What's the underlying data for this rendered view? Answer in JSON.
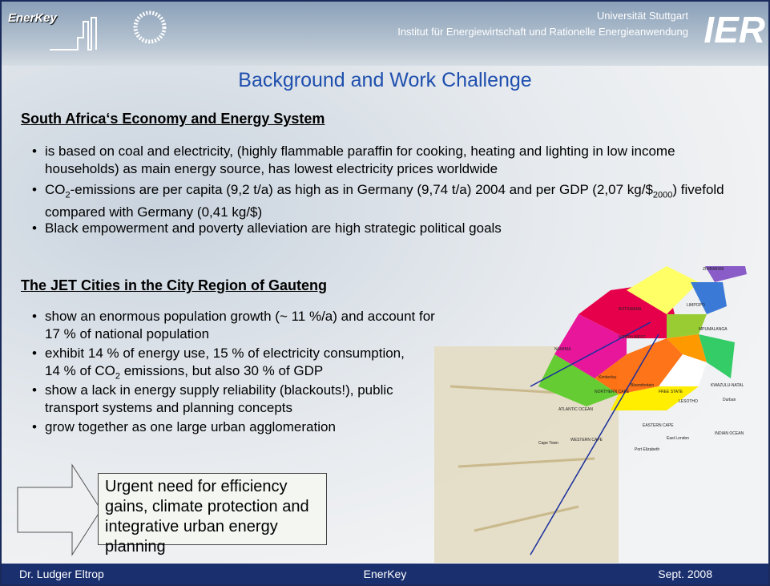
{
  "header": {
    "logo": "EnerKey",
    "university": "Universität Stuttgart",
    "institute": "Institut für Energiewirtschaft und Rationelle Energieanwendung",
    "logo_right": "IER"
  },
  "title": "Background and Work Challenge",
  "sections": [
    {
      "heading": "South Africa‘s Economy and Energy System",
      "bullets": [
        [
          "is based on coal and electricity, (highly flammable paraffin for cooking, heating and lighting in low income households) as main energy source, has lowest electricity prices worldwide"
        ],
        [
          "CO",
          "2",
          "-emissions are per capita (9,2 t/a) as high as in Germany (9,74 t/a) 2004 and per GDP (2,07 kg/$",
          "2000",
          ") fivefold compared with Germany (0,41 kg/$)"
        ],
        [
          "Black empowerment and poverty alleviation are high strategic political goals"
        ]
      ]
    },
    {
      "heading": "The JET Cities in the City Region of Gauteng",
      "bullets": [
        [
          "show an enormous population growth (~ 11 %/a) and account for 17 % of national population"
        ],
        [
          "exhibit 14 % of energy use, 15 % of electricity consumption, 14 % of CO",
          "2",
          " emissions, but also 30 % of GDP"
        ],
        [
          "show a lack in energy supply reliability (blackouts!), public transport systems and planning concepts"
        ],
        [
          "grow together as one large urban agglomeration"
        ]
      ]
    }
  ],
  "callout": "Urgent need for efficiency gains, climate protection and integrative urban energy planning",
  "map_labels": [
    "ZIMBABWE",
    "BOTSWANA",
    "LIMPOPO",
    "NAMIBIA",
    "NORTH WEST",
    "MPUMALANGA",
    "FREE STATE",
    "NORTHERN CAPE",
    "KWAZULU-NATAL",
    "LESOTHO",
    "ATLANTIC OCEAN",
    "INDIAN OCEAN",
    "WESTERN CAPE",
    "EASTERN CAPE",
    "Cape Town",
    "Port Elizabeth",
    "East London",
    "Durban",
    "Kimberley",
    "Bloemfontein"
  ],
  "footer": {
    "left": "Dr. Ludger Eltrop",
    "center": "EnerKey",
    "right": "Sept. 2008"
  }
}
